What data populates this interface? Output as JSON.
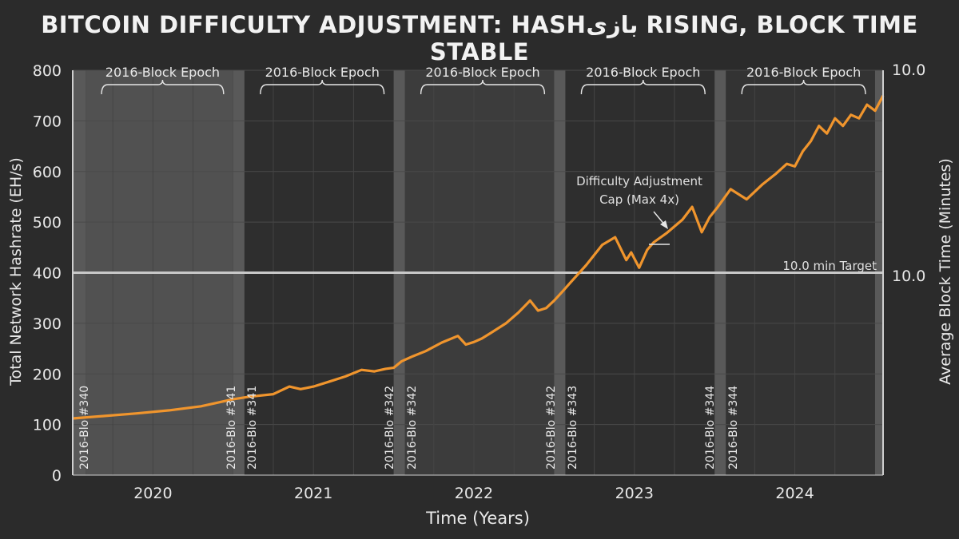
{
  "chart_data": {
    "type": "line",
    "title": "BITCOIN DIFFICULTY ADJUSTMENT: HASHبازی RISING, BLOCK TIME STABLE",
    "xlabel": "Time (Years)",
    "ylabel": "Total Network Hashrate (EH/s)",
    "y2label": "Average Block Time (Minutes)",
    "xlim": [
      2019.5,
      2024.55
    ],
    "ylim": [
      0,
      800
    ],
    "x_ticks": [
      "2020",
      "2021",
      "2022",
      "2023",
      "2024"
    ],
    "y_ticks": [
      0,
      100,
      200,
      300,
      400,
      500,
      600,
      700,
      800
    ],
    "y2_ticks": [
      "10.0",
      "10.0"
    ],
    "grid": true,
    "series": [
      {
        "color": "#f0952d",
        "x": [
          2019.5,
          2019.7,
          2019.9,
          2020.1,
          2020.3,
          2020.5,
          2020.6,
          2020.75,
          2020.85,
          2020.92,
          2021.0,
          2021.1,
          2021.2,
          2021.3,
          2021.38,
          2021.45,
          2021.5,
          2021.55,
          2021.62,
          2021.7,
          2021.8,
          2021.9,
          2021.95,
          2022.0,
          2022.05,
          2022.1,
          2022.2,
          2022.28,
          2022.35,
          2022.4,
          2022.45,
          2022.5,
          2022.55,
          2022.6,
          2022.7,
          2022.8,
          2022.88,
          2022.95,
          2022.98,
          2023.03,
          2023.08,
          2023.12,
          2023.2,
          2023.3,
          2023.36,
          2023.42,
          2023.47,
          2023.52,
          2023.6,
          2023.7,
          2023.8,
          2023.88,
          2023.95,
          2024.0,
          2024.05,
          2024.1,
          2024.15,
          2024.2,
          2024.25,
          2024.3,
          2024.35,
          2024.4,
          2024.45,
          2024.5,
          2024.55
        ],
        "y": [
          112,
          117,
          122,
          128,
          136,
          150,
          155,
          160,
          175,
          170,
          175,
          185,
          195,
          208,
          205,
          210,
          212,
          225,
          235,
          245,
          262,
          275,
          258,
          263,
          270,
          280,
          300,
          322,
          345,
          325,
          330,
          345,
          362,
          380,
          415,
          455,
          470,
          425,
          440,
          410,
          445,
          460,
          478,
          505,
          530,
          480,
          510,
          530,
          565,
          545,
          575,
          595,
          615,
          610,
          640,
          660,
          690,
          675,
          705,
          690,
          712,
          705,
          732,
          720,
          750
        ]
      }
    ],
    "epochs": [
      {
        "label": "2016-Block Epoch",
        "x0": 2019.58,
        "x1": 2020.5
      },
      {
        "label": "2016-Block Epoch",
        "x0": 2020.57,
        "x1": 2021.5
      },
      {
        "label": "2016-Block Epoch",
        "x0": 2021.57,
        "x1": 2022.5
      },
      {
        "label": "2016-Block Epoch",
        "x0": 2022.57,
        "x1": 2023.5
      },
      {
        "label": "2016-Block Epoch",
        "x0": 2023.57,
        "x1": 2024.5
      }
    ],
    "boundary_labels": [
      "2016-Blo #340",
      "2016-Blo #341",
      "2016-Blo #341",
      "2016-Blo #342",
      "2016-Blo #342",
      "2016-Blo #342",
      "2016-Blo #343",
      "2016-Blo #344",
      "2016-Blo #344"
    ],
    "annotations": [
      {
        "text": "Difficulty Adjustment",
        "text2": "Cap (Max 4x)"
      },
      {
        "text": "10.0 min Target",
        "y": 400
      }
    ]
  }
}
